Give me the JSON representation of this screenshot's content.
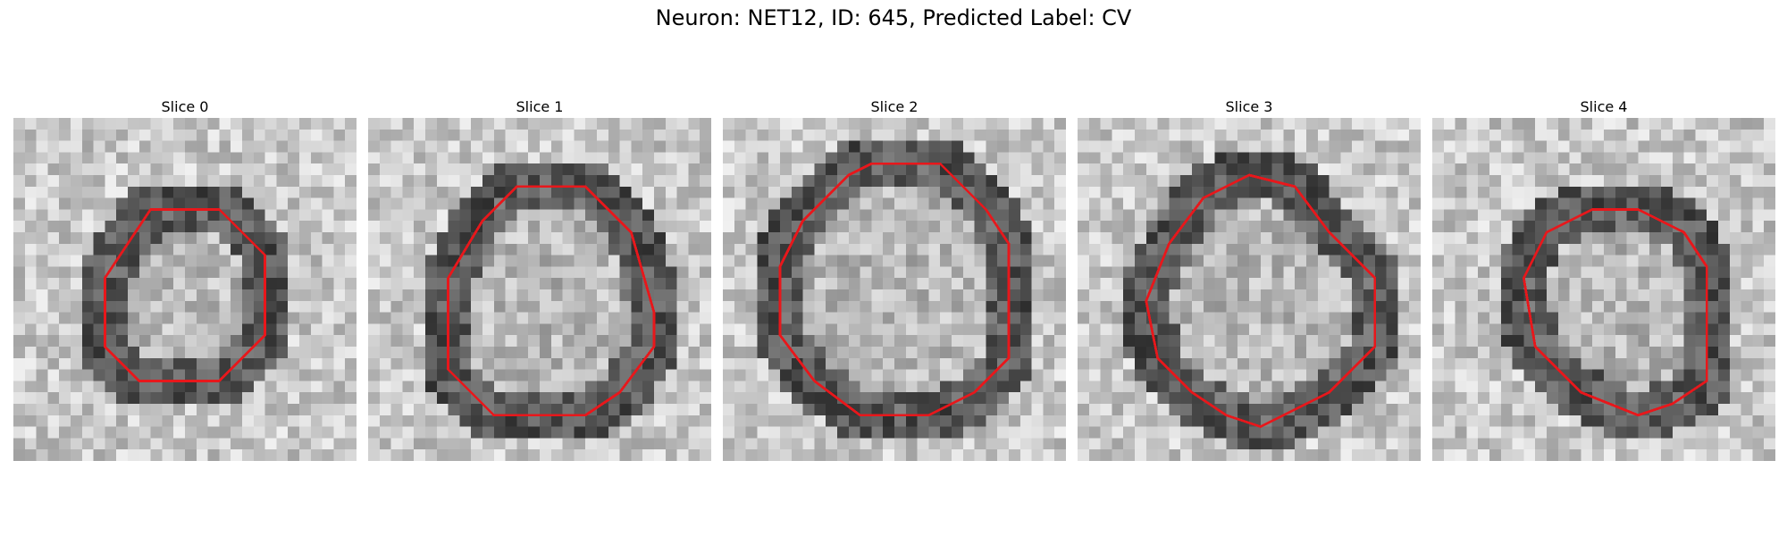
{
  "figure": {
    "title": "Neuron: NET12, ID: 645, Predicted Label: CV"
  },
  "colors": {
    "contour": "#e8171b",
    "background": "#ffffff"
  },
  "panels": [
    {
      "label": "Slice 0",
      "grid": 30,
      "contour": [
        [
          12,
          8
        ],
        [
          18,
          8
        ],
        [
          22,
          12
        ],
        [
          22,
          19
        ],
        [
          18,
          23
        ],
        [
          11,
          23
        ],
        [
          8,
          20
        ],
        [
          8,
          14
        ]
      ]
    },
    {
      "label": "Slice 1",
      "grid": 30,
      "contour": [
        [
          13,
          6
        ],
        [
          19,
          6
        ],
        [
          23,
          10
        ],
        [
          25,
          17
        ],
        [
          25,
          20
        ],
        [
          22,
          24
        ],
        [
          19,
          26
        ],
        [
          11,
          26
        ],
        [
          7,
          22
        ],
        [
          7,
          14
        ],
        [
          10,
          9
        ]
      ]
    },
    {
      "label": "Slice 2",
      "grid": 30,
      "contour": [
        [
          13,
          4
        ],
        [
          19,
          4
        ],
        [
          23,
          8
        ],
        [
          25,
          11
        ],
        [
          25,
          21
        ],
        [
          22,
          24
        ],
        [
          18,
          26
        ],
        [
          12,
          26
        ],
        [
          8,
          23
        ],
        [
          5,
          19
        ],
        [
          5,
          13
        ],
        [
          7,
          9
        ],
        [
          11,
          5
        ]
      ]
    },
    {
      "label": "Slice 3",
      "grid": 30,
      "contour": [
        [
          15,
          5
        ],
        [
          19,
          6
        ],
        [
          22,
          10
        ],
        [
          26,
          14
        ],
        [
          26,
          20
        ],
        [
          22,
          24
        ],
        [
          18,
          26
        ],
        [
          16,
          27
        ],
        [
          13,
          26
        ],
        [
          10,
          24
        ],
        [
          7,
          21
        ],
        [
          6,
          16
        ],
        [
          8,
          11
        ],
        [
          11,
          7
        ]
      ]
    },
    {
      "label": "Slice 4",
      "grid": 30,
      "contour": [
        [
          14,
          8
        ],
        [
          18,
          8
        ],
        [
          22,
          10
        ],
        [
          24,
          13
        ],
        [
          24,
          23
        ],
        [
          21,
          25
        ],
        [
          18,
          26
        ],
        [
          13,
          24
        ],
        [
          9,
          20
        ],
        [
          8,
          14
        ],
        [
          10,
          10
        ]
      ]
    }
  ]
}
